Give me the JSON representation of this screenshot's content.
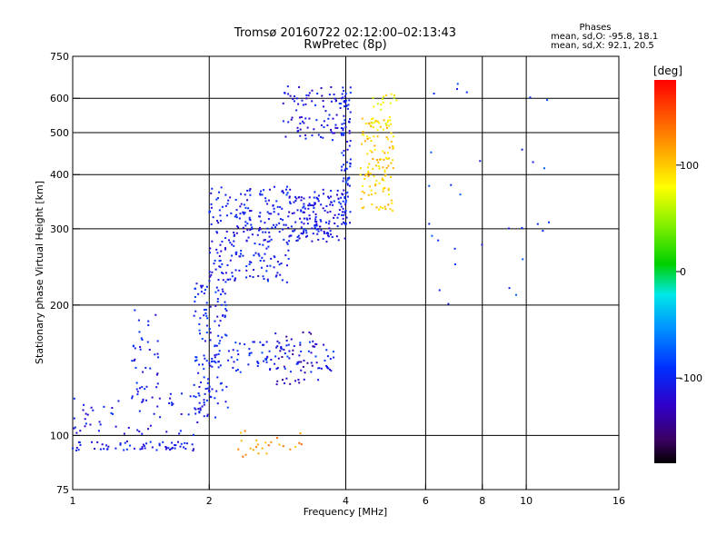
{
  "header": {
    "title": "Tromsø 20160722 02:12:00–02:13:43",
    "subtitle": "RwPretec (8p)",
    "stats_heading": "Phases",
    "stats_o": "mean, sd,O: -95.8, 18.1",
    "stats_x": "mean, sd,X: 92.1, 20.5"
  },
  "colorbar": {
    "label": "[deg]",
    "range": [
      -180,
      180
    ],
    "ticks": [
      {
        "value": 100,
        "label": "100"
      },
      {
        "value": 0,
        "label": "0"
      },
      {
        "value": -100,
        "label": "-100"
      }
    ]
  },
  "chart_data": {
    "type": "scatter",
    "xlabel": "Frequency [MHz]",
    "ylabel": "Stationary phase Virtual Height [km]",
    "xscale": "log",
    "yscale": "log",
    "xlim": [
      1,
      16
    ],
    "ylim": [
      75,
      750
    ],
    "grid": true,
    "color_quantity": "phase (deg)",
    "x_ticks": [
      {
        "value": 1,
        "label": "1"
      },
      {
        "value": 2,
        "label": "2"
      },
      {
        "value": 4,
        "label": "4"
      },
      {
        "value": 6,
        "label": "6"
      },
      {
        "value": 8,
        "label": "8"
      },
      {
        "value": 10,
        "label": "10"
      },
      {
        "value": 16,
        "label": "16"
      }
    ],
    "x_grid": [
      2,
      4,
      6,
      8,
      10
    ],
    "y_ticks": [
      {
        "value": 75,
        "label": "75"
      },
      {
        "value": 100,
        "label": "100"
      },
      {
        "value": 200,
        "label": "200"
      },
      {
        "value": 300,
        "label": "300"
      },
      {
        "value": 400,
        "label": "400"
      },
      {
        "value": 500,
        "label": "500"
      },
      {
        "value": 600,
        "label": "600"
      },
      {
        "value": 750,
        "label": "750"
      }
    ],
    "y_grid": [
      100,
      200,
      300,
      400,
      500,
      600
    ],
    "clusters": [
      {
        "name": "low-E trace",
        "x_range": [
          1.0,
          1.85
        ],
        "y_range": [
          92,
          97
        ],
        "phase": -105,
        "n": 60
      },
      {
        "name": "rising trace",
        "x_range": [
          1.0,
          1.9
        ],
        "y_range": [
          100,
          125
        ],
        "phase": -110,
        "n": 60
      },
      {
        "name": "slanted trace",
        "x_range": [
          1.35,
          1.55
        ],
        "y_range": [
          120,
          195
        ],
        "phase": -105,
        "n": 40
      },
      {
        "name": "E-F transition",
        "x_range": [
          1.85,
          2.2
        ],
        "y_range": [
          110,
          230
        ],
        "phase": -100,
        "n": 140
      },
      {
        "name": "F1 region",
        "x_range": [
          2.0,
          3.0
        ],
        "y_range": [
          225,
          375
        ],
        "phase": -105,
        "n": 250
      },
      {
        "name": "F2 O-mode",
        "x_range": [
          3.0,
          4.0
        ],
        "y_range": [
          280,
          370
        ],
        "phase": -110,
        "n": 160
      },
      {
        "name": "F2 O-mode cusp",
        "x_range": [
          3.9,
          4.1
        ],
        "y_range": [
          300,
          640
        ],
        "phase": -100,
        "n": 90
      },
      {
        "name": "F2 upper",
        "x_range": [
          2.9,
          3.9
        ],
        "y_range": [
          480,
          640
        ],
        "phase": -110,
        "n": 80
      },
      {
        "name": "F2 X-mode",
        "x_range": [
          4.3,
          5.1
        ],
        "y_range": [
          330,
          540
        ],
        "phase": 100,
        "n": 120
      },
      {
        "name": "X-mode spread",
        "x_range": [
          4.5,
          5.2
        ],
        "y_range": [
          500,
          620
        ],
        "phase": 80,
        "n": 25
      },
      {
        "name": "mid echoes",
        "x_range": [
          2.2,
          3.8
        ],
        "y_range": [
          140,
          165
        ],
        "phase": -100,
        "n": 90
      },
      {
        "name": "mid echoes 2",
        "x_range": [
          2.8,
          3.5
        ],
        "y_range": [
          130,
          175
        ],
        "phase": -130,
        "n": 40
      },
      {
        "name": "low echoes",
        "x_range": [
          2.3,
          3.2
        ],
        "y_range": [
          89,
          103
        ],
        "phase": 120,
        "n": 25
      },
      {
        "name": "sparse",
        "x_range": [
          6.0,
          11.5
        ],
        "y_range": [
          200,
          650
        ],
        "phase": -90,
        "n": 30
      }
    ]
  }
}
